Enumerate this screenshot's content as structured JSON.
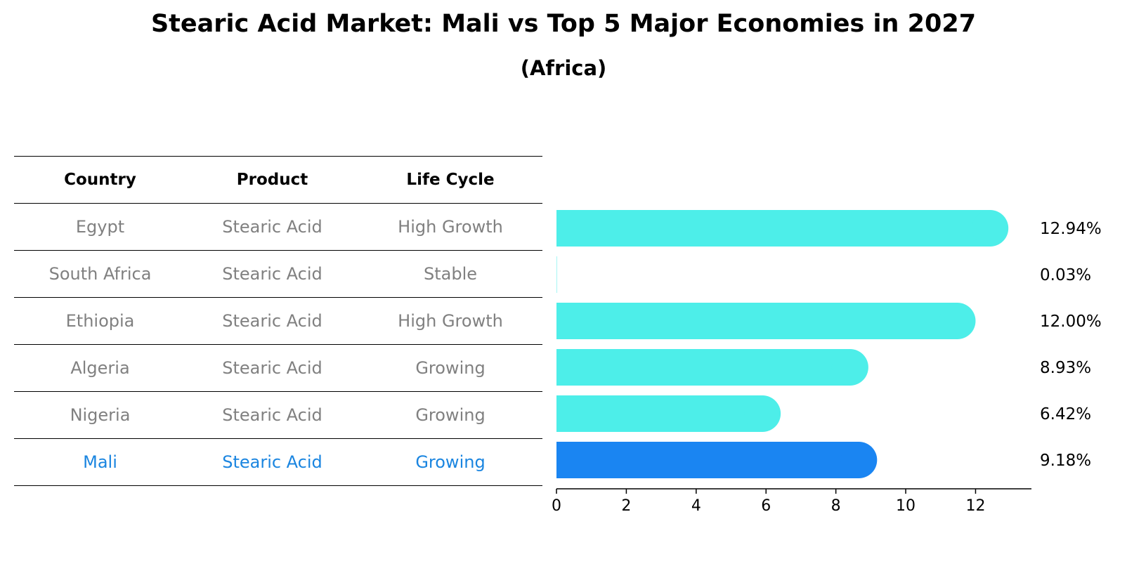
{
  "chart_data": {
    "type": "bar",
    "orientation": "horizontal",
    "title": "Stearic Acid Market: Mali vs Top 5 Major Economies in 2027",
    "subtitle": "(Africa)",
    "table_headers": [
      "Country",
      "Product",
      "Life Cycle"
    ],
    "rows": [
      {
        "country": "Egypt",
        "product": "Stearic Acid",
        "life_cycle": "High Growth",
        "value": 12.94,
        "label": "12.94%"
      },
      {
        "country": "South Africa",
        "product": "Stearic Acid",
        "life_cycle": "Stable",
        "value": 0.03,
        "label": "0.03%"
      },
      {
        "country": "Ethiopia",
        "product": "Stearic Acid",
        "life_cycle": "High Growth",
        "value": 12.0,
        "label": "12.00%"
      },
      {
        "country": "Algeria",
        "product": "Stearic Acid",
        "life_cycle": "Growing",
        "value": 8.93,
        "label": "8.93%"
      },
      {
        "country": "Nigeria",
        "product": "Stearic Acid",
        "life_cycle": "Growing",
        "value": 6.42,
        "label": "6.42%"
      },
      {
        "country": "Mali",
        "product": "Stearic Acid",
        "life_cycle": "Growing",
        "value": 9.18,
        "label": "9.18%",
        "highlight": true
      }
    ],
    "xticks": [
      "0",
      "2",
      "4",
      "6",
      "8",
      "10",
      "12"
    ],
    "xlim": [
      0,
      13.6
    ],
    "colors": {
      "bar": "#4deee9",
      "highlight_bar": "#1a85f2",
      "highlight_text": "#1a85e0",
      "muted_text": "#808080"
    }
  }
}
